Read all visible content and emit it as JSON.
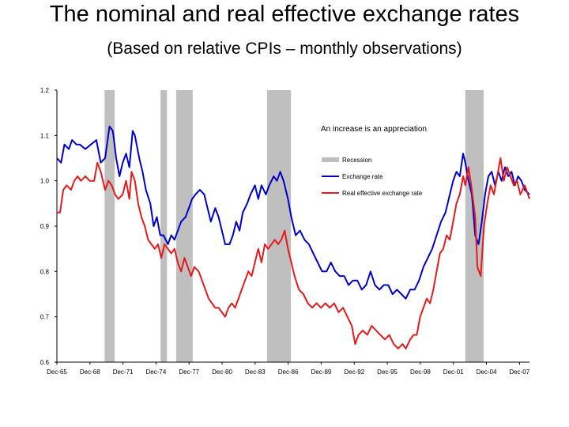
{
  "page": {
    "title": "The nominal and real effective exchange rates",
    "subtitle": "(Based on relative CPIs – monthly observations)"
  },
  "chart_data": {
    "type": "line",
    "title": "The nominal and real effective exchange rates",
    "subtitle": "(Based on relative CPIs – monthly observations)",
    "xlabel": "",
    "ylabel": "",
    "x_range": [
      1965.92,
      2008.83
    ],
    "ylim": [
      0.6,
      1.2
    ],
    "y_ticks": [
      0.6,
      0.7,
      0.8,
      0.9,
      1.0,
      1.1,
      1.2
    ],
    "y_tick_labels": [
      "0.6",
      "0.7",
      "0.8",
      "0.9",
      "1.0",
      "1.1",
      "1.2"
    ],
    "x_ticks": [
      1965.92,
      1968.92,
      1971.92,
      1974.92,
      1977.92,
      1980.92,
      1983.92,
      1986.92,
      1989.92,
      1992.92,
      1995.92,
      1998.92,
      2001.92,
      2004.92,
      2007.92
    ],
    "x_tick_labels": [
      "Dec-65",
      "Dec-68",
      "Dec-71",
      "Dec-74",
      "Dec-77",
      "Dec-80",
      "Dec-83",
      "Dec-86",
      "Dec-89",
      "Dec-92",
      "Dec-95",
      "Dec-98",
      "Dec-01",
      "Dec-04",
      "Dec-07"
    ],
    "annotation": "An increase is an appreciation",
    "recessions": [
      [
        1970.25,
        1971.17
      ],
      [
        1975.33,
        1975.92
      ],
      [
        1976.75,
        1978.25
      ],
      [
        1985.0,
        1987.17
      ],
      [
        2003.0,
        2004.67
      ]
    ],
    "legend": [
      {
        "name": "Recession",
        "color": "#bfbfbf",
        "kind": "bar"
      },
      {
        "name": "Exchange rate",
        "color": "#0000cc",
        "kind": "line"
      },
      {
        "name": "Real effective exchange rate",
        "color": "#e41a1c",
        "kind": "line"
      }
    ],
    "series": [
      {
        "name": "Exchange rate",
        "color": "#0000cc",
        "points": [
          [
            1965.92,
            1.05
          ],
          [
            1966.3,
            1.04
          ],
          [
            1966.6,
            1.08
          ],
          [
            1967.0,
            1.07
          ],
          [
            1967.3,
            1.09
          ],
          [
            1967.7,
            1.08
          ],
          [
            1968.0,
            1.08
          ],
          [
            1968.5,
            1.07
          ],
          [
            1969.0,
            1.08
          ],
          [
            1969.5,
            1.09
          ],
          [
            1969.9,
            1.04
          ],
          [
            1970.3,
            1.05
          ],
          [
            1970.7,
            1.12
          ],
          [
            1971.0,
            1.11
          ],
          [
            1971.3,
            1.05
          ],
          [
            1971.6,
            1.01
          ],
          [
            1971.9,
            1.04
          ],
          [
            1972.2,
            1.06
          ],
          [
            1972.5,
            1.03
          ],
          [
            1972.8,
            1.11
          ],
          [
            1973.0,
            1.1
          ],
          [
            1973.4,
            1.05
          ],
          [
            1973.7,
            1.02
          ],
          [
            1974.0,
            0.98
          ],
          [
            1974.4,
            0.95
          ],
          [
            1974.7,
            0.9
          ],
          [
            1975.0,
            0.92
          ],
          [
            1975.3,
            0.88
          ],
          [
            1975.6,
            0.88
          ],
          [
            1976.0,
            0.86
          ],
          [
            1976.3,
            0.88
          ],
          [
            1976.6,
            0.87
          ],
          [
            1976.9,
            0.89
          ],
          [
            1977.2,
            0.91
          ],
          [
            1977.6,
            0.92
          ],
          [
            1977.9,
            0.94
          ],
          [
            1978.2,
            0.96
          ],
          [
            1978.5,
            0.97
          ],
          [
            1978.9,
            0.98
          ],
          [
            1979.3,
            0.97
          ],
          [
            1979.6,
            0.94
          ],
          [
            1979.9,
            0.91
          ],
          [
            1980.3,
            0.94
          ],
          [
            1980.6,
            0.92
          ],
          [
            1980.9,
            0.89
          ],
          [
            1981.2,
            0.86
          ],
          [
            1981.6,
            0.86
          ],
          [
            1981.9,
            0.88
          ],
          [
            1982.2,
            0.91
          ],
          [
            1982.5,
            0.89
          ],
          [
            1982.8,
            0.93
          ],
          [
            1983.2,
            0.95
          ],
          [
            1983.5,
            0.97
          ],
          [
            1983.9,
            0.99
          ],
          [
            1984.2,
            0.96
          ],
          [
            1984.5,
            0.99
          ],
          [
            1984.9,
            0.97
          ],
          [
            1985.2,
            0.99
          ],
          [
            1985.6,
            1.01
          ],
          [
            1985.9,
            1.0
          ],
          [
            1986.2,
            1.02
          ],
          [
            1986.5,
            1.0
          ],
          [
            1986.9,
            0.96
          ],
          [
            1987.2,
            0.92
          ],
          [
            1987.6,
            0.88
          ],
          [
            1988.0,
            0.89
          ],
          [
            1988.4,
            0.87
          ],
          [
            1988.8,
            0.86
          ],
          [
            1989.2,
            0.84
          ],
          [
            1989.6,
            0.82
          ],
          [
            1990.0,
            0.8
          ],
          [
            1990.4,
            0.8
          ],
          [
            1990.8,
            0.82
          ],
          [
            1991.2,
            0.8
          ],
          [
            1991.6,
            0.79
          ],
          [
            1992.0,
            0.79
          ],
          [
            1992.4,
            0.77
          ],
          [
            1992.8,
            0.78
          ],
          [
            1993.2,
            0.78
          ],
          [
            1993.6,
            0.76
          ],
          [
            1994.0,
            0.77
          ],
          [
            1994.4,
            0.8
          ],
          [
            1994.8,
            0.77
          ],
          [
            1995.2,
            0.76
          ],
          [
            1995.6,
            0.77
          ],
          [
            1996.0,
            0.77
          ],
          [
            1996.4,
            0.75
          ],
          [
            1996.8,
            0.76
          ],
          [
            1997.2,
            0.75
          ],
          [
            1997.6,
            0.74
          ],
          [
            1998.0,
            0.76
          ],
          [
            1998.4,
            0.76
          ],
          [
            1998.8,
            0.78
          ],
          [
            1999.2,
            0.81
          ],
          [
            1999.6,
            0.83
          ],
          [
            2000.0,
            0.85
          ],
          [
            2000.4,
            0.88
          ],
          [
            2000.8,
            0.91
          ],
          [
            2001.2,
            0.93
          ],
          [
            2001.6,
            0.97
          ],
          [
            2001.9,
            1.0
          ],
          [
            2002.2,
            1.02
          ],
          [
            2002.5,
            1.01
          ],
          [
            2002.8,
            1.06
          ],
          [
            2003.0,
            1.04
          ],
          [
            2003.3,
            1.0
          ],
          [
            2003.6,
            0.97
          ],
          [
            2003.9,
            0.88
          ],
          [
            2004.2,
            0.86
          ],
          [
            2004.5,
            0.91
          ],
          [
            2004.8,
            0.97
          ],
          [
            2005.1,
            1.01
          ],
          [
            2005.4,
            1.02
          ],
          [
            2005.7,
            0.99
          ],
          [
            2006.0,
            1.02
          ],
          [
            2006.3,
            1.0
          ],
          [
            2006.6,
            1.03
          ],
          [
            2006.9,
            1.01
          ],
          [
            2007.2,
            1.02
          ],
          [
            2007.5,
            0.99
          ],
          [
            2007.8,
            1.01
          ],
          [
            2008.1,
            1.0
          ],
          [
            2008.4,
            0.98
          ],
          [
            2008.83,
            0.97
          ]
        ]
      },
      {
        "name": "Real effective exchange rate",
        "color": "#e41a1c",
        "points": [
          [
            1965.92,
            0.93
          ],
          [
            1966.2,
            0.93
          ],
          [
            1966.5,
            0.98
          ],
          [
            1966.8,
            0.99
          ],
          [
            1967.2,
            0.98
          ],
          [
            1967.5,
            1.0
          ],
          [
            1967.8,
            1.01
          ],
          [
            1968.1,
            1.0
          ],
          [
            1968.5,
            1.01
          ],
          [
            1968.9,
            1.0
          ],
          [
            1969.3,
            1.0
          ],
          [
            1969.6,
            1.04
          ],
          [
            1969.9,
            1.02
          ],
          [
            1970.3,
            0.98
          ],
          [
            1970.6,
            1.0
          ],
          [
            1970.9,
            0.99
          ],
          [
            1971.2,
            0.97
          ],
          [
            1971.5,
            0.96
          ],
          [
            1971.9,
            0.97
          ],
          [
            1972.2,
            1.0
          ],
          [
            1972.5,
            0.96
          ],
          [
            1972.7,
            1.02
          ],
          [
            1973.0,
            1.0
          ],
          [
            1973.3,
            0.95
          ],
          [
            1973.6,
            0.92
          ],
          [
            1973.9,
            0.9
          ],
          [
            1974.2,
            0.87
          ],
          [
            1974.5,
            0.86
          ],
          [
            1974.8,
            0.85
          ],
          [
            1975.1,
            0.86
          ],
          [
            1975.4,
            0.83
          ],
          [
            1975.7,
            0.86
          ],
          [
            1976.0,
            0.85
          ],
          [
            1976.3,
            0.84
          ],
          [
            1976.6,
            0.85
          ],
          [
            1976.9,
            0.82
          ],
          [
            1977.2,
            0.8
          ],
          [
            1977.5,
            0.83
          ],
          [
            1977.8,
            0.81
          ],
          [
            1978.1,
            0.79
          ],
          [
            1978.4,
            0.81
          ],
          [
            1978.8,
            0.8
          ],
          [
            1979.1,
            0.78
          ],
          [
            1979.4,
            0.76
          ],
          [
            1979.7,
            0.74
          ],
          [
            1980.0,
            0.73
          ],
          [
            1980.3,
            0.72
          ],
          [
            1980.6,
            0.72
          ],
          [
            1980.9,
            0.71
          ],
          [
            1981.2,
            0.7
          ],
          [
            1981.5,
            0.72
          ],
          [
            1981.8,
            0.73
          ],
          [
            1982.1,
            0.72
          ],
          [
            1982.4,
            0.74
          ],
          [
            1982.7,
            0.76
          ],
          [
            1983.0,
            0.78
          ],
          [
            1983.3,
            0.8
          ],
          [
            1983.6,
            0.79
          ],
          [
            1983.9,
            0.82
          ],
          [
            1984.2,
            0.85
          ],
          [
            1984.5,
            0.82
          ],
          [
            1984.8,
            0.86
          ],
          [
            1985.1,
            0.85
          ],
          [
            1985.4,
            0.86
          ],
          [
            1985.7,
            0.87
          ],
          [
            1986.0,
            0.86
          ],
          [
            1986.3,
            0.87
          ],
          [
            1986.6,
            0.89
          ],
          [
            1986.9,
            0.85
          ],
          [
            1987.2,
            0.82
          ],
          [
            1987.5,
            0.79
          ],
          [
            1987.9,
            0.76
          ],
          [
            1988.3,
            0.75
          ],
          [
            1988.7,
            0.73
          ],
          [
            1989.1,
            0.72
          ],
          [
            1989.5,
            0.73
          ],
          [
            1989.9,
            0.72
          ],
          [
            1990.3,
            0.73
          ],
          [
            1990.7,
            0.72
          ],
          [
            1991.1,
            0.73
          ],
          [
            1991.5,
            0.71
          ],
          [
            1991.9,
            0.72
          ],
          [
            1992.3,
            0.7
          ],
          [
            1992.7,
            0.68
          ],
          [
            1993.0,
            0.64
          ],
          [
            1993.3,
            0.66
          ],
          [
            1993.7,
            0.67
          ],
          [
            1994.1,
            0.66
          ],
          [
            1994.5,
            0.68
          ],
          [
            1994.9,
            0.67
          ],
          [
            1995.3,
            0.66
          ],
          [
            1995.7,
            0.65
          ],
          [
            1996.1,
            0.66
          ],
          [
            1996.5,
            0.64
          ],
          [
            1996.9,
            0.63
          ],
          [
            1997.3,
            0.64
          ],
          [
            1997.6,
            0.63
          ],
          [
            1998.0,
            0.65
          ],
          [
            1998.3,
            0.66
          ],
          [
            1998.6,
            0.66
          ],
          [
            1998.9,
            0.7
          ],
          [
            1999.2,
            0.72
          ],
          [
            1999.5,
            0.74
          ],
          [
            1999.8,
            0.73
          ],
          [
            2000.1,
            0.76
          ],
          [
            2000.4,
            0.8
          ],
          [
            2000.7,
            0.84
          ],
          [
            2001.0,
            0.85
          ],
          [
            2001.3,
            0.88
          ],
          [
            2001.6,
            0.87
          ],
          [
            2001.9,
            0.91
          ],
          [
            2002.2,
            0.95
          ],
          [
            2002.5,
            0.97
          ],
          [
            2002.8,
            1.01
          ],
          [
            2003.0,
            0.99
          ],
          [
            2003.3,
            1.03
          ],
          [
            2003.6,
            0.98
          ],
          [
            2003.9,
            0.92
          ],
          [
            2004.1,
            0.81
          ],
          [
            2004.4,
            0.79
          ],
          [
            2004.7,
            0.9
          ],
          [
            2005.0,
            0.95
          ],
          [
            2005.3,
            0.99
          ],
          [
            2005.6,
            0.97
          ],
          [
            2005.9,
            1.01
          ],
          [
            2006.2,
            1.05
          ],
          [
            2006.5,
            1.0
          ],
          [
            2006.8,
            1.03
          ],
          [
            2007.1,
            1.01
          ],
          [
            2007.4,
            0.99
          ],
          [
            2007.7,
            1.0
          ],
          [
            2008.0,
            0.97
          ],
          [
            2008.4,
            0.99
          ],
          [
            2008.83,
            0.96
          ]
        ]
      }
    ]
  }
}
